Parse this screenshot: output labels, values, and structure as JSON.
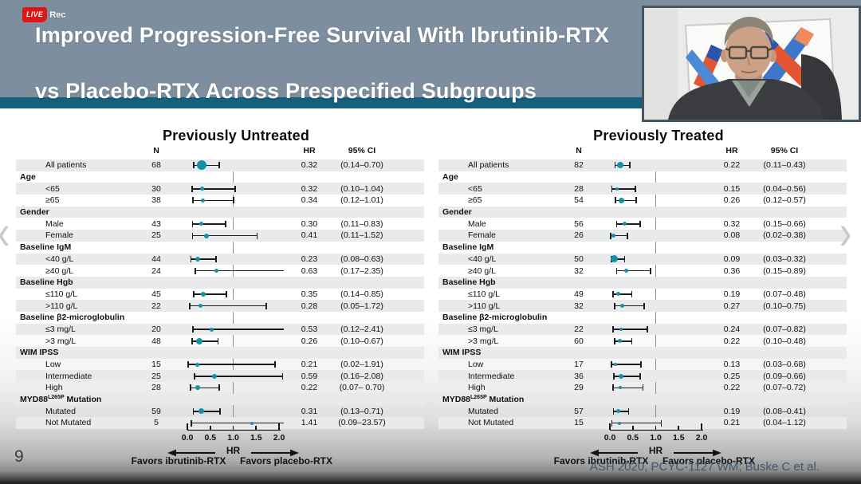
{
  "recording": {
    "live": "LIVE",
    "rec": "Rec"
  },
  "header": {
    "title_line1": "Improved Progression-Free Survival With Ibrutinib-RTX",
    "title_line2": "vs Placebo-RTX Across Prespecified Subgroups"
  },
  "nav": {
    "prev": "‹",
    "next": "›"
  },
  "footer": {
    "page": "9",
    "citation": "ASH 2020, PCYC-1127 WM; Buske C et al."
  },
  "colors": {
    "marker": "#1791a5",
    "header_bg": "#7d8f9f",
    "strip": "#15607f",
    "band": "#e8eaeb"
  },
  "chart_data": [
    {
      "type": "forest",
      "title": "Previously Untreated",
      "columns": {
        "n": "N",
        "hr": "HR",
        "ci": "95% CI"
      },
      "xlabel": "HR",
      "xlim": [
        0,
        2.0
      ],
      "xticks": [
        "0.0",
        "0.5",
        "1.0",
        "1.5",
        "2.0"
      ],
      "refline": 1.0,
      "favors_left": "Favors ibrutinib-RTX",
      "favors_right": "Favors placebo-RTX",
      "rows": [
        {
          "label": "All patients",
          "n": 68,
          "hr": "0.32",
          "hr_v": 0.32,
          "lo": 0.14,
          "hi": 0.7,
          "ci_text": "(0.14–0.70)",
          "m": 12
        },
        {
          "group": true,
          "label": "Age"
        },
        {
          "label": "<65",
          "n": 30,
          "hr": "0.32",
          "hr_v": 0.32,
          "lo": 0.1,
          "hi": 1.04,
          "ci_text": "(0.10–1.04)",
          "m": 5
        },
        {
          "label": "≥65",
          "n": 38,
          "hr": "0.34",
          "hr_v": 0.34,
          "lo": 0.12,
          "hi": 1.01,
          "ci_text": "(0.12–1.01)",
          "m": 5
        },
        {
          "group": true,
          "label": "Gender"
        },
        {
          "label": "Male",
          "n": 43,
          "hr": "0.30",
          "hr_v": 0.3,
          "lo": 0.11,
          "hi": 0.83,
          "ci_text": "(0.11–0.83)",
          "m": 5
        },
        {
          "label": "Female",
          "n": 25,
          "hr": "0.41",
          "hr_v": 0.41,
          "lo": 0.11,
          "hi": 1.52,
          "ci_text": "(0.11–1.52)",
          "m": 6
        },
        {
          "group": true,
          "label": "Baseline IgM"
        },
        {
          "label": "<40 g/L",
          "n": 44,
          "hr": "0.23",
          "hr_v": 0.23,
          "lo": 0.08,
          "hi": 0.63,
          "ci_text": "(0.08–0.63)",
          "m": 6
        },
        {
          "label": "≥40 g/L",
          "n": 24,
          "hr": "0.63",
          "hr_v": 0.63,
          "lo": 0.17,
          "hi": 2.35,
          "ci_text": "(0.17–2.35)",
          "m": 5
        },
        {
          "group": true,
          "label": "Baseline Hgb"
        },
        {
          "label": "≤110 g/L",
          "n": 45,
          "hr": "0.35",
          "hr_v": 0.35,
          "lo": 0.14,
          "hi": 0.85,
          "ci_text": "(0.14–0.85)",
          "m": 6
        },
        {
          "label": ">110 g/L",
          "n": 22,
          "hr": "0.28",
          "hr_v": 0.28,
          "lo": 0.05,
          "hi": 1.72,
          "ci_text": "(0.05–1.72)",
          "m": 5
        },
        {
          "group": true,
          "label": "Baseline β2-microglobulin"
        },
        {
          "label": "≤3 mg/L",
          "n": 20,
          "hr": "0.53",
          "hr_v": 0.53,
          "lo": 0.12,
          "hi": 2.41,
          "ci_text": "(0.12–2.41)",
          "m": 5
        },
        {
          "label": ">3 mg/L",
          "n": 48,
          "hr": "0.26",
          "hr_v": 0.26,
          "lo": 0.1,
          "hi": 0.67,
          "ci_text": "(0.10–0.67)",
          "m": 8
        },
        {
          "group": true,
          "label": "WIM IPSS"
        },
        {
          "label": "Low",
          "n": 15,
          "hr": "0.21",
          "hr_v": 0.21,
          "lo": 0.02,
          "hi": 1.91,
          "ci_text": "(0.02–1.91)",
          "m": 5
        },
        {
          "label": "Intermediate",
          "n": 25,
          "hr": "0.59",
          "hr_v": 0.59,
          "lo": 0.16,
          "hi": 2.08,
          "ci_text": "(0.16–2.08)",
          "m": 6
        },
        {
          "label": "High",
          "n": 28,
          "hr": "0.22",
          "hr_v": 0.22,
          "lo": 0.07,
          "hi": 0.7,
          "ci_text": "(0.07– 0.70)",
          "m": 6
        },
        {
          "group": true,
          "label": "MYD88",
          "sup": "L265P",
          "suffix": " Mutation"
        },
        {
          "label": "Mutated",
          "n": 59,
          "hr": "0.31",
          "hr_v": 0.31,
          "lo": 0.13,
          "hi": 0.71,
          "ci_text": "(0.13–0.71)",
          "m": 7
        },
        {
          "label": "Not Mutated",
          "n": 5,
          "hr": "1.41",
          "hr_v": 1.41,
          "lo": 0.09,
          "hi": 23.57,
          "ci_text": "(0.09–23.57)",
          "m": 4
        }
      ]
    },
    {
      "type": "forest",
      "title": "Previously Treated",
      "columns": {
        "n": "N",
        "hr": "HR",
        "ci": "95% CI"
      },
      "xlabel": "HR",
      "xlim": [
        0,
        2.0
      ],
      "xticks": [
        "0.0",
        "0.5",
        "1.0",
        "1.5",
        "2.0"
      ],
      "refline": 1.0,
      "favors_left": "Favors ibrutinib-RTX",
      "favors_right": "Favors placebo-RTX",
      "rows": [
        {
          "label": "All patients",
          "n": 82,
          "hr": "0.22",
          "hr_v": 0.22,
          "lo": 0.11,
          "hi": 0.43,
          "ci_text": "(0.11–0.43)",
          "m": 8
        },
        {
          "group": true,
          "label": "Age"
        },
        {
          "label": "<65",
          "n": 28,
          "hr": "0.15",
          "hr_v": 0.15,
          "lo": 0.04,
          "hi": 0.56,
          "ci_text": "(0.04–0.56)",
          "m": 4
        },
        {
          "label": "≥65",
          "n": 54,
          "hr": "0.26",
          "hr_v": 0.26,
          "lo": 0.12,
          "hi": 0.57,
          "ci_text": "(0.12–0.57)",
          "m": 7
        },
        {
          "group": true,
          "label": "Gender"
        },
        {
          "label": "Male",
          "n": 56,
          "hr": "0.32",
          "hr_v": 0.32,
          "lo": 0.15,
          "hi": 0.66,
          "ci_text": "(0.15–0.66)",
          "m": 5
        },
        {
          "label": "Female",
          "n": 26,
          "hr": "0.08",
          "hr_v": 0.08,
          "lo": 0.02,
          "hi": 0.38,
          "ci_text": "(0.02–0.38)",
          "m": 5
        },
        {
          "group": true,
          "label": "Baseline IgM"
        },
        {
          "label": "<40 g/L",
          "n": 50,
          "hr": "0.09",
          "hr_v": 0.09,
          "lo": 0.03,
          "hi": 0.32,
          "ci_text": "(0.03–0.32)",
          "m": 9
        },
        {
          "label": "≥40 g/L",
          "n": 32,
          "hr": "0.36",
          "hr_v": 0.36,
          "lo": 0.15,
          "hi": 0.89,
          "ci_text": "(0.15–0.89)",
          "m": 5
        },
        {
          "group": true,
          "label": "Baseline Hgb"
        },
        {
          "label": "≤110 g/L",
          "n": 49,
          "hr": "0.19",
          "hr_v": 0.19,
          "lo": 0.07,
          "hi": 0.48,
          "ci_text": "(0.07–0.48)",
          "m": 5
        },
        {
          "label": ">110 g/L",
          "n": 32,
          "hr": "0.27",
          "hr_v": 0.27,
          "lo": 0.1,
          "hi": 0.75,
          "ci_text": "(0.10–0.75)",
          "m": 5
        },
        {
          "group": true,
          "label": "Baseline β2-microglobulin"
        },
        {
          "label": "≤3 mg/L",
          "n": 22,
          "hr": "0.24",
          "hr_v": 0.24,
          "lo": 0.07,
          "hi": 0.82,
          "ci_text": "(0.07–0.82)",
          "m": 4
        },
        {
          "label": ">3 mg/L",
          "n": 60,
          "hr": "0.22",
          "hr_v": 0.22,
          "lo": 0.1,
          "hi": 0.48,
          "ci_text": "(0.10–0.48)",
          "m": 5
        },
        {
          "group": true,
          "label": "WIM IPSS"
        },
        {
          "label": "Low",
          "n": 17,
          "hr": "0.13",
          "hr_v": 0.13,
          "lo": 0.03,
          "hi": 0.68,
          "ci_text": "(0.03–0.68)",
          "m": 4
        },
        {
          "label": "Intermediate",
          "n": 36,
          "hr": "0.25",
          "hr_v": 0.25,
          "lo": 0.09,
          "hi": 0.66,
          "ci_text": "(0.09–0.66)",
          "m": 6
        },
        {
          "label": "High",
          "n": 29,
          "hr": "0.22",
          "hr_v": 0.22,
          "lo": 0.07,
          "hi": 0.72,
          "ci_text": "(0.07–0.72)",
          "m": 4
        },
        {
          "group": true,
          "label": "MYD88",
          "sup": "L265P",
          "suffix": " Mutation"
        },
        {
          "label": "Mutated",
          "n": 57,
          "hr": "0.19",
          "hr_v": 0.19,
          "lo": 0.08,
          "hi": 0.41,
          "ci_text": "(0.08–0.41)",
          "m": 5
        },
        {
          "label": "Not Mutated",
          "n": 15,
          "hr": "0.21",
          "hr_v": 0.21,
          "lo": 0.04,
          "hi": 1.12,
          "ci_text": "(0.04–1.12)",
          "m": 4
        }
      ]
    }
  ]
}
